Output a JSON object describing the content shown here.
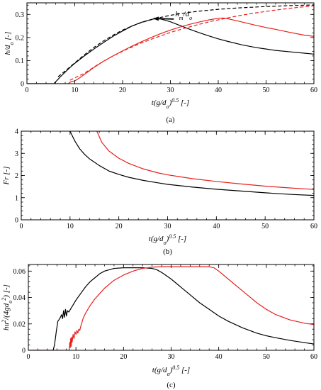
{
  "figure": {
    "background": "#ffffff",
    "colors": {
      "black_series": "#000000",
      "red_series": "#e8201c"
    }
  },
  "chart_data": [
    {
      "type": "line",
      "panel_label": "(a)",
      "xlabel": "t(g/d_o)^0.5 [-]",
      "ylabel": "h/d_o [-]",
      "xlim": [
        0,
        60
      ],
      "ylim": [
        0,
        0.35
      ],
      "xticks": [
        0,
        10,
        20,
        30,
        40,
        50,
        60
      ],
      "yticks": [
        0,
        0.1,
        0.2,
        0.3
      ],
      "annotation": {
        "text": "h_m/d_o",
        "arrow_to": [
          26.5,
          0.282
        ],
        "at": [
          31,
          0.292
        ]
      },
      "series": [
        {
          "color": "#000000",
          "style": "solid",
          "x": [
            0,
            5.6,
            6.2,
            7,
            8,
            9,
            10,
            12,
            14,
            16,
            18,
            20,
            22,
            24,
            26,
            27,
            28,
            30,
            32,
            34,
            36,
            38,
            40,
            42,
            45,
            48,
            50,
            52,
            55,
            58,
            60
          ],
          "y": [
            0,
            0,
            0.012,
            0.03,
            0.05,
            0.07,
            0.088,
            0.12,
            0.15,
            0.178,
            0.205,
            0.228,
            0.25,
            0.266,
            0.278,
            0.282,
            0.28,
            0.268,
            0.252,
            0.236,
            0.221,
            0.207,
            0.194,
            0.183,
            0.168,
            0.156,
            0.15,
            0.144,
            0.138,
            0.132,
            0.128
          ]
        },
        {
          "color": "#000000",
          "style": "dashed",
          "x": [
            6.5,
            8,
            10,
            12,
            14,
            16,
            18,
            20,
            22,
            24,
            26,
            28,
            30,
            32,
            34,
            36,
            38,
            40,
            45,
            50,
            55,
            60
          ],
          "y": [
            0.03,
            0.055,
            0.09,
            0.125,
            0.157,
            0.185,
            0.21,
            0.232,
            0.25,
            0.265,
            0.277,
            0.287,
            0.296,
            0.303,
            0.309,
            0.314,
            0.318,
            0.322,
            0.329,
            0.334,
            0.338,
            0.341
          ]
        },
        {
          "color": "#e8201c",
          "style": "solid",
          "x": [
            0,
            8.6,
            9.2,
            10,
            11,
            12,
            14,
            16,
            18,
            20,
            22,
            24,
            26,
            28,
            30,
            32,
            34,
            36,
            38,
            40,
            41,
            42,
            44,
            46,
            48,
            50,
            52,
            55,
            58,
            60
          ],
          "y": [
            0,
            0,
            0.008,
            0.012,
            0.025,
            0.04,
            0.07,
            0.097,
            0.12,
            0.142,
            0.163,
            0.182,
            0.2,
            0.217,
            0.232,
            0.245,
            0.257,
            0.267,
            0.276,
            0.283,
            0.284,
            0.281,
            0.272,
            0.262,
            0.252,
            0.243,
            0.235,
            0.222,
            0.21,
            0.205
          ]
        },
        {
          "color": "#e8201c",
          "style": "dashed",
          "x": [
            9,
            12,
            15,
            18,
            21,
            24,
            27,
            30,
            33,
            36,
            39,
            42,
            45,
            48,
            51,
            54,
            57,
            60
          ],
          "y": [
            0.015,
            0.045,
            0.085,
            0.12,
            0.15,
            0.177,
            0.2,
            0.222,
            0.24,
            0.257,
            0.272,
            0.285,
            0.297,
            0.307,
            0.316,
            0.324,
            0.331,
            0.337
          ]
        }
      ]
    },
    {
      "type": "line",
      "panel_label": "(b)",
      "xlabel": "t(g/d_o)^0.5 [-]",
      "ylabel": "Fr [-]",
      "xlim": [
        0,
        60
      ],
      "ylim": [
        0,
        4
      ],
      "xticks": [
        0,
        10,
        20,
        30,
        40,
        50,
        60
      ],
      "yticks": [
        0,
        1,
        2,
        3,
        4
      ],
      "series": [
        {
          "color": "#000000",
          "style": "solid",
          "x": [
            10,
            11,
            12,
            13,
            14,
            16,
            18,
            20,
            22,
            25,
            28,
            30,
            35,
            40,
            45,
            50,
            55,
            60
          ],
          "y": [
            4.0,
            3.55,
            3.2,
            2.95,
            2.75,
            2.45,
            2.2,
            2.05,
            1.92,
            1.78,
            1.67,
            1.6,
            1.48,
            1.38,
            1.3,
            1.22,
            1.15,
            1.1
          ]
        },
        {
          "color": "#e8201c",
          "style": "solid",
          "x": [
            15.5,
            16.5,
            18,
            20,
            22,
            25,
            28,
            30,
            35,
            40,
            45,
            50,
            55,
            60
          ],
          "y": [
            4.0,
            3.5,
            3.1,
            2.78,
            2.55,
            2.3,
            2.12,
            2.03,
            1.86,
            1.73,
            1.62,
            1.52,
            1.44,
            1.37
          ]
        }
      ]
    },
    {
      "type": "line",
      "panel_label": "(c)",
      "xlabel": "t(g/d_o)^0.5 [-]",
      "ylabel": "hu^2/(4gd_o^2) [-]",
      "xlim": [
        0,
        60
      ],
      "ylim": [
        0,
        0.065
      ],
      "xticks": [
        0,
        10,
        20,
        30,
        40,
        50,
        60
      ],
      "yticks": [
        0,
        0.02,
        0.04,
        0.06
      ],
      "series": [
        {
          "color": "#000000",
          "style": "solid",
          "x": [
            0,
            5.2,
            5.5,
            5.9,
            6.2,
            6.6,
            7.0,
            7.2,
            7.4,
            7.6,
            7.8,
            8.0,
            8.2,
            8.5,
            9,
            10,
            11,
            12,
            13,
            14,
            15,
            16,
            18,
            20,
            22,
            24,
            26,
            27,
            28,
            30,
            32,
            34,
            36,
            38,
            40,
            42,
            45,
            48,
            50,
            52,
            55,
            58,
            60
          ],
          "y": [
            0,
            0,
            0.004,
            0.015,
            0.022,
            0.024,
            0.027,
            0.024,
            0.03,
            0.025,
            0.031,
            0.026,
            0.03,
            0.029,
            0.032,
            0.038,
            0.043,
            0.048,
            0.052,
            0.055,
            0.058,
            0.06,
            0.062,
            0.0625,
            0.0625,
            0.0625,
            0.062,
            0.061,
            0.059,
            0.054,
            0.048,
            0.042,
            0.036,
            0.031,
            0.026,
            0.022,
            0.017,
            0.013,
            0.011,
            0.0095,
            0.0075,
            0.0058,
            0.0048
          ]
        },
        {
          "color": "#e8201c",
          "style": "solid",
          "x": [
            0,
            8.6,
            8.7,
            8.8,
            8.9,
            9.0,
            9.1,
            9.2,
            9.4,
            9.6,
            9.8,
            10,
            10.2,
            10.4,
            10.6,
            10.8,
            11,
            11.5,
            12,
            13,
            14,
            15,
            16,
            18,
            20,
            22,
            24,
            26,
            28,
            30,
            32,
            34,
            36,
            38,
            39,
            40,
            42,
            44,
            46,
            48,
            50,
            52,
            55,
            58,
            60
          ],
          "y": [
            0,
            0,
            0.006,
            0.002,
            0.009,
            0.003,
            0.01,
            0.006,
            0.012,
            0.009,
            0.014,
            0.012,
            0.015,
            0.013,
            0.016,
            0.015,
            0.018,
            0.024,
            0.028,
            0.034,
            0.039,
            0.043,
            0.047,
            0.053,
            0.057,
            0.06,
            0.062,
            0.063,
            0.0633,
            0.0633,
            0.0633,
            0.0633,
            0.0633,
            0.0633,
            0.0625,
            0.06,
            0.054,
            0.048,
            0.042,
            0.036,
            0.031,
            0.027,
            0.023,
            0.0205,
            0.0195
          ]
        }
      ]
    }
  ]
}
